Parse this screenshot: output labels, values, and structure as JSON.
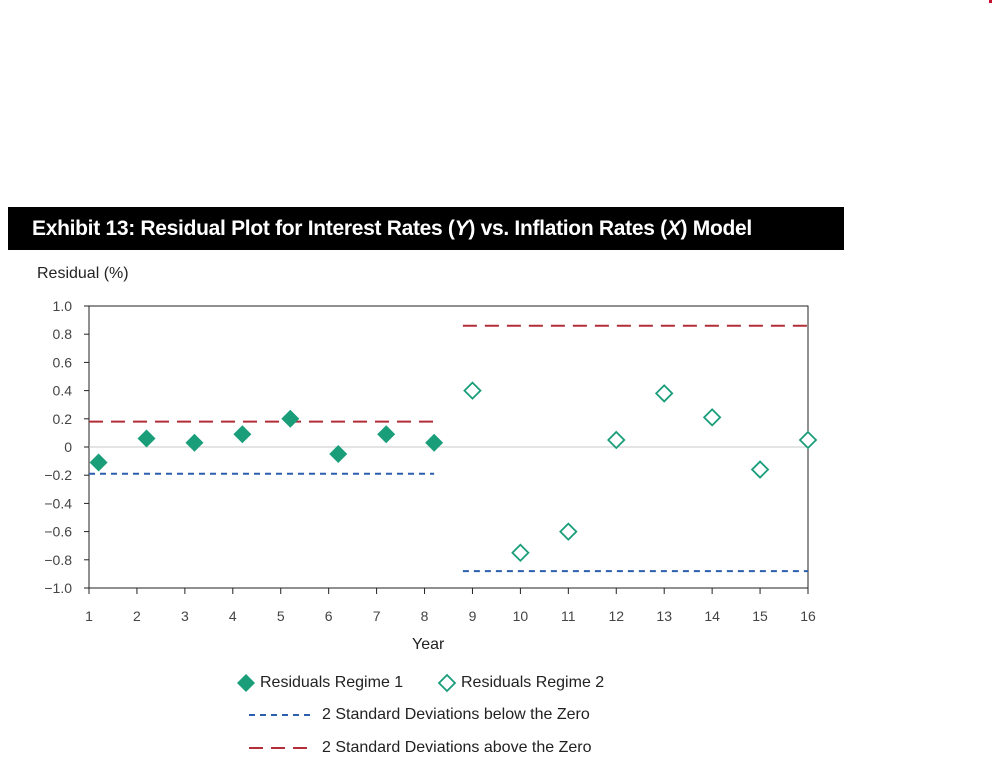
{
  "banner": {
    "title_prefix": "Exhibit 13: Residual Plot for Interest Rates (",
    "title_y": "Y",
    "title_mid": ") vs. Inflation Rates (",
    "title_x": "X",
    "title_suffix": ") Model"
  },
  "colors": {
    "regime1": "#1a9e7a",
    "regime2": "#1a9e7a",
    "below_line": "#2b5fad",
    "above_line": "#b22d3a",
    "zero_line": "#c8c8c8",
    "banner_bg": "#000000"
  },
  "chart_data": {
    "type": "scatter",
    "title": "Exhibit 13: Residual Plot for Interest Rates (Y) vs. Inflation Rates (X) Model",
    "xlabel": "Year",
    "ylabel": "Residual (%)",
    "xlim": [
      1,
      16
    ],
    "ylim": [
      -1.0,
      1.0
    ],
    "x_ticks": [
      "1",
      "2",
      "3",
      "4",
      "5",
      "6",
      "7",
      "8",
      "9",
      "10",
      "11",
      "12",
      "13",
      "14",
      "15",
      "16"
    ],
    "y_ticks": [
      "1.0",
      "0.8",
      "0.6",
      "0.4",
      "0.2",
      "0",
      "−0.2",
      "−0.4",
      "−0.6",
      "−0.8",
      "−1.0"
    ],
    "y_tick_values": [
      1.0,
      0.8,
      0.6,
      0.4,
      0.2,
      0,
      -0.2,
      -0.4,
      -0.6,
      -0.8,
      -1.0
    ],
    "series": [
      {
        "name": "Residuals Regime 1",
        "marker": "filled-diamond",
        "x": [
          1.2,
          2.2,
          3.2,
          4.2,
          5.2,
          6.2,
          7.2,
          8.2
        ],
        "y": [
          -0.11,
          0.06,
          0.03,
          0.09,
          0.2,
          -0.05,
          0.09,
          0.03
        ]
      },
      {
        "name": "Residuals Regime 2",
        "marker": "hollow-diamond",
        "x": [
          9.0,
          10.0,
          11.0,
          12.0,
          13.0,
          14.0,
          15.0,
          16.0
        ],
        "y": [
          0.4,
          -0.75,
          -0.6,
          0.05,
          0.38,
          0.21,
          -0.16,
          0.05
        ]
      }
    ],
    "reference_lines": [
      {
        "name": "2 Standard Deviations above the Zero",
        "style": "long-dash",
        "x": [
          1.0,
          8.2
        ],
        "y": 0.18
      },
      {
        "name": "2 Standard Deviations below the Zero",
        "style": "short-dash",
        "x": [
          1.0,
          8.2
        ],
        "y": -0.19
      },
      {
        "name": "2 Standard Deviations above the Zero",
        "style": "long-dash",
        "x": [
          8.8,
          16.0
        ],
        "y": 0.86
      },
      {
        "name": "2 Standard Deviations below the Zero",
        "style": "short-dash",
        "x": [
          8.8,
          16.0
        ],
        "y": -0.88
      }
    ],
    "legend": [
      "Residuals Regime 1",
      "Residuals Regime 2",
      "2 Standard Deviations below the Zero",
      "2 Standard Deviations above the Zero"
    ],
    "legend_position": "bottom",
    "grid": false
  }
}
